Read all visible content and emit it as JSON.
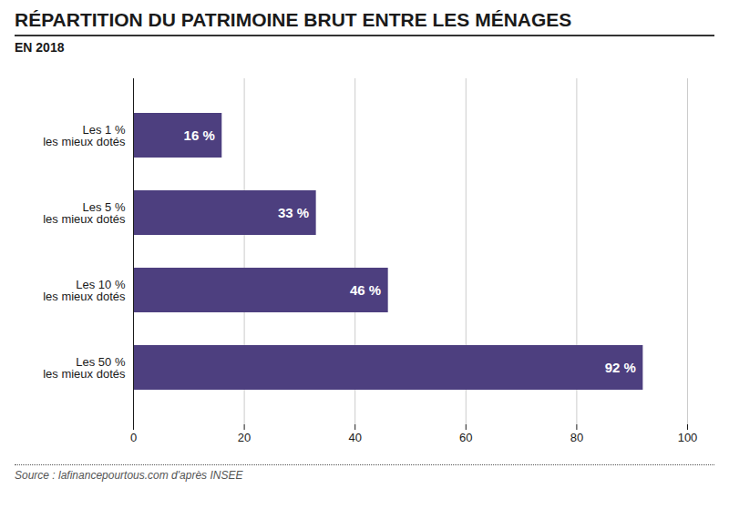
{
  "chart_data": {
    "type": "bar",
    "title": "RÉPARTITION DU PATRIMOINE BRUT ENTRE LES MÉNAGES",
    "subtitle": "EN 2018",
    "source": "Source : lafinancepourtous.com d'après INSEE",
    "orientation": "horizontal",
    "categories": [
      "Les 50 %\nles mieux dotés",
      "Les 10 %\nles mieux dotés",
      "Les 5 %\nles mieux dotés",
      "Les 1 %\nles mieux dotés"
    ],
    "values": [
      92,
      46,
      33,
      16
    ],
    "value_labels": [
      "92 %",
      "46 %",
      "33 %",
      "16 %"
    ],
    "data_labels": true,
    "color": "#4d3f7f",
    "xlim": [
      0,
      100
    ],
    "xticks": [
      0,
      20,
      40,
      60,
      80,
      100
    ],
    "grid": true
  }
}
